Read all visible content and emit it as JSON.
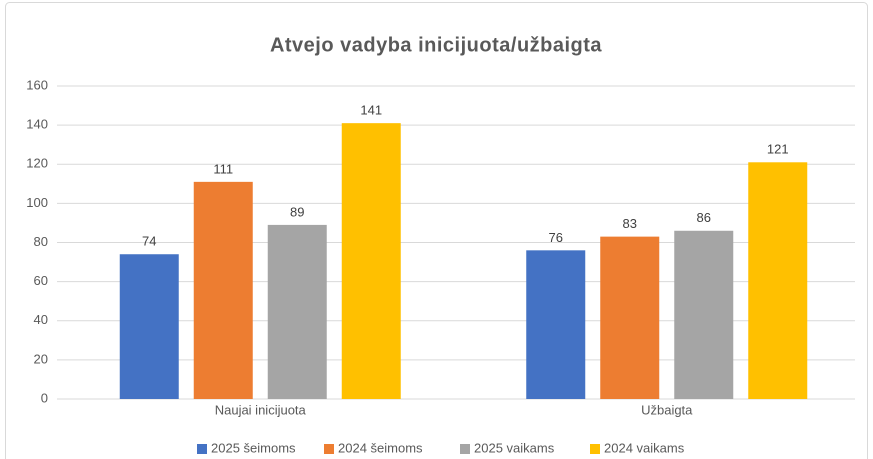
{
  "chart_data": {
    "type": "bar",
    "title": "Atvejo vadyba inicijuota/užbaigta",
    "categories": [
      "Naujai inicijuota",
      "Užbaigta"
    ],
    "series": [
      {
        "name": "2025 šeimoms",
        "color": "#4472c4",
        "values": [
          74,
          76
        ]
      },
      {
        "name": "2024 šeimoms",
        "color": "#ed7d31",
        "values": [
          111,
          83
        ]
      },
      {
        "name": "2025 vaikams",
        "color": "#a5a5a5",
        "values": [
          89,
          86
        ]
      },
      {
        "name": "2024 vaikams",
        "color": "#ffc000",
        "values": [
          141,
          121
        ]
      }
    ],
    "ylim": [
      0,
      160
    ],
    "yticks": [
      0,
      20,
      40,
      60,
      80,
      100,
      120,
      140,
      160
    ],
    "grid": true,
    "legend": "bottom",
    "data_labels": true
  }
}
